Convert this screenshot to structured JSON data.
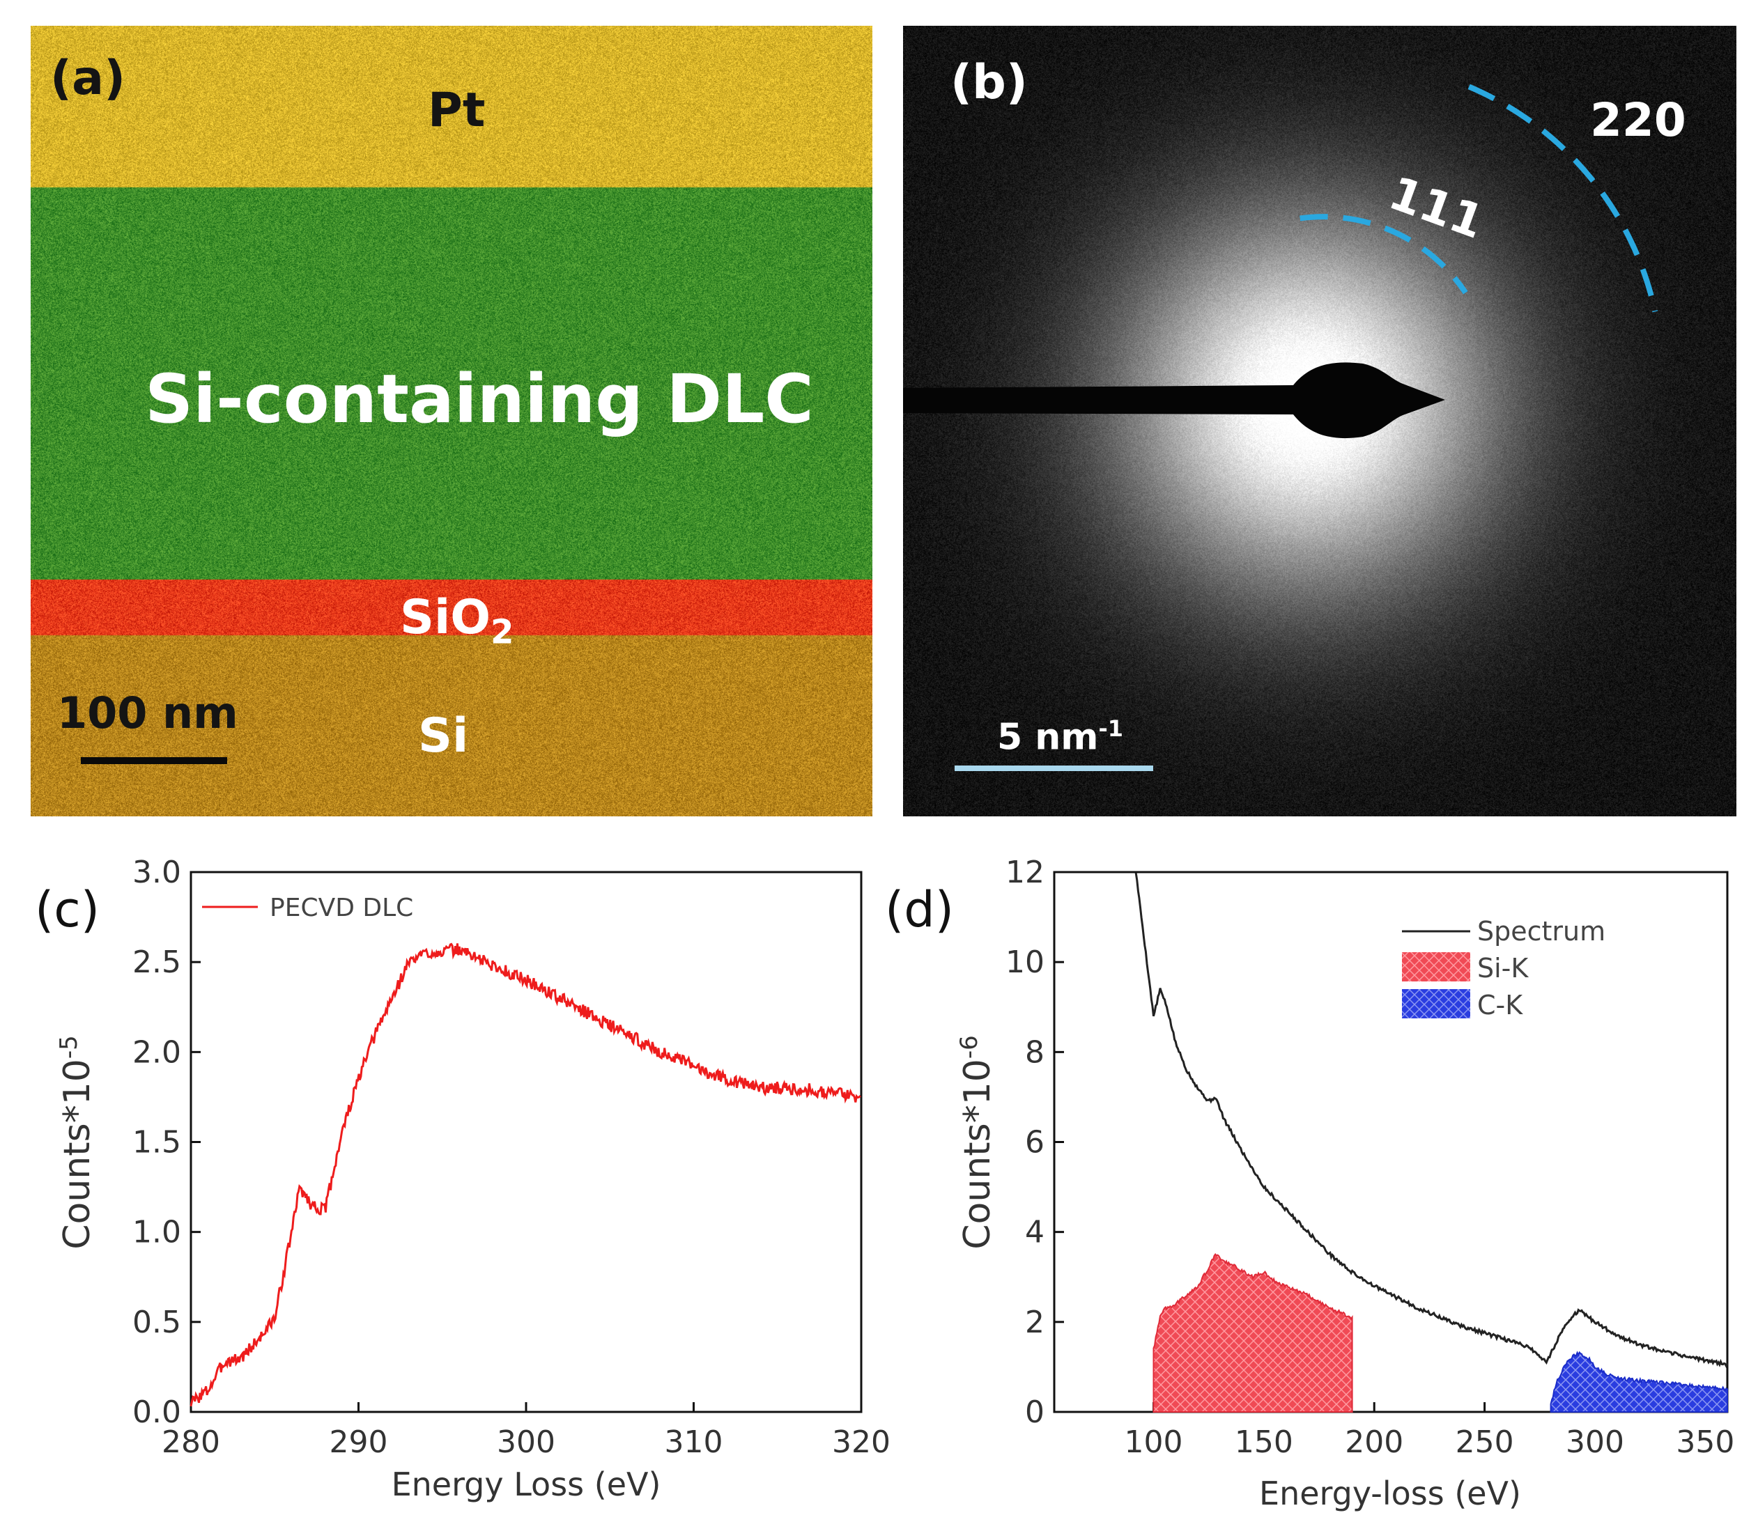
{
  "panel_a": {
    "label": "(a)",
    "layers": [
      {
        "name": "Pt",
        "color": "#d9b52a"
      },
      {
        "name": "Si-containing DLC",
        "color": "#3e8e2a"
      },
      {
        "name": "SiO",
        "subscript": "2",
        "color": "#e8391a"
      },
      {
        "name": "Si",
        "color": "#b8861c"
      }
    ],
    "scale_bar": "100 nm"
  },
  "panel_b": {
    "label": "(b)",
    "rings": [
      "111",
      "220"
    ],
    "ring_color": "#2aa8e0",
    "scale_bar": "5 nm",
    "scale_bar_sup": "-1"
  },
  "chart_data": [
    {
      "panel_label": "(c)",
      "type": "line",
      "title": "",
      "xlabel": "Energy Loss (eV)",
      "ylabel": "Counts*10",
      "ylabel_sup": "-5",
      "xlim": [
        280,
        320
      ],
      "ylim": [
        0.0,
        3.0
      ],
      "xticks": [
        "280",
        "290",
        "300",
        "310",
        "320"
      ],
      "yticks": [
        "0.0",
        "0.5",
        "1.0",
        "1.5",
        "2.0",
        "2.5",
        "3.0"
      ],
      "legend": "top-left",
      "series": [
        {
          "name": "PECVD DLC",
          "color": "#ee1c1c",
          "x": [
            280,
            281,
            282,
            283,
            284,
            285,
            285.8,
            286.5,
            287.2,
            288,
            289,
            290,
            291,
            292,
            293,
            294,
            295,
            296,
            297,
            298,
            300,
            302,
            304,
            306,
            308,
            310,
            312,
            314,
            316,
            318,
            320
          ],
          "y": [
            0.05,
            0.12,
            0.28,
            0.3,
            0.4,
            0.52,
            0.9,
            1.25,
            1.15,
            1.12,
            1.55,
            1.85,
            2.1,
            2.3,
            2.5,
            2.55,
            2.56,
            2.57,
            2.53,
            2.48,
            2.4,
            2.3,
            2.2,
            2.1,
            2.0,
            1.92,
            1.85,
            1.8,
            1.8,
            1.78,
            1.75
          ]
        }
      ]
    },
    {
      "panel_label": "(d)",
      "type": "area",
      "title": "",
      "xlabel": "Energy-loss (eV)",
      "ylabel": "Counts*10",
      "ylabel_sup": "-6",
      "xlim": [
        55,
        360
      ],
      "ylim": [
        0,
        12
      ],
      "xticks": [
        "100",
        "150",
        "200",
        "250",
        "300",
        "350"
      ],
      "yticks": [
        "0",
        "2",
        "4",
        "6",
        "8",
        "10",
        "12"
      ],
      "legend": "top-right",
      "series": [
        {
          "name": "Spectrum",
          "color": "#222222",
          "x": [
            92,
            95,
            100,
            103,
            106,
            110,
            115,
            120,
            125,
            128,
            132,
            140,
            150,
            160,
            170,
            180,
            190,
            200,
            210,
            220,
            230,
            240,
            250,
            260,
            270,
            278,
            285,
            290,
            293,
            300,
            310,
            320,
            330,
            340,
            350,
            360
          ],
          "y": [
            12.0,
            10.8,
            8.8,
            9.4,
            9.0,
            8.2,
            7.6,
            7.2,
            6.9,
            7.0,
            6.5,
            5.8,
            5.0,
            4.5,
            4.0,
            3.5,
            3.1,
            2.8,
            2.55,
            2.3,
            2.1,
            1.9,
            1.75,
            1.6,
            1.45,
            1.1,
            1.8,
            2.15,
            2.25,
            2.0,
            1.7,
            1.5,
            1.35,
            1.25,
            1.15,
            1.05
          ]
        },
        {
          "name": "Si-K",
          "color": "#f04a55",
          "x": [
            100,
            103,
            105,
            110,
            115,
            120,
            125,
            128,
            132,
            138,
            145,
            150,
            155,
            160,
            170,
            180,
            185,
            190
          ],
          "y": [
            1.4,
            2.1,
            2.3,
            2.4,
            2.6,
            2.8,
            3.2,
            3.5,
            3.35,
            3.2,
            3.0,
            3.1,
            2.9,
            2.8,
            2.6,
            2.3,
            2.2,
            2.1
          ]
        },
        {
          "name": "C-K",
          "color": "#2a3de0",
          "x": [
            280,
            283,
            286,
            290,
            293,
            297,
            300,
            305,
            310,
            320,
            330,
            340,
            350,
            360
          ],
          "y": [
            0.2,
            0.7,
            1.0,
            1.25,
            1.3,
            1.2,
            1.0,
            0.85,
            0.75,
            0.7,
            0.65,
            0.6,
            0.55,
            0.5
          ]
        }
      ]
    }
  ]
}
